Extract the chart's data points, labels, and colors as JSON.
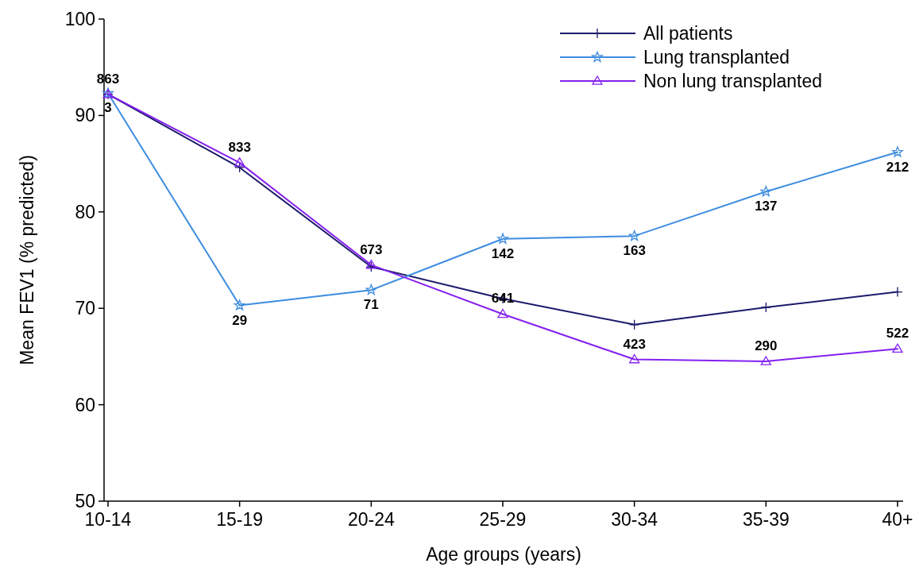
{
  "chart_data": {
    "type": "line",
    "xlabel": "Age groups (years)",
    "ylabel": "Mean FEV1 (% predicted)",
    "categories": [
      "10-14",
      "15-19",
      "20-24",
      "25-29",
      "30-34",
      "35-39",
      "40+"
    ],
    "ylim": [
      50,
      100
    ],
    "yticks": [
      50,
      60,
      70,
      80,
      90,
      100
    ],
    "legend": "top right",
    "grid": false,
    "series": [
      {
        "name": "All patients",
        "color": "#1c1a6b",
        "marker": "cross",
        "values": [
          92.2,
          84.6,
          74.3,
          71.0,
          68.3,
          70.1,
          71.7
        ]
      },
      {
        "name": "Lung transplanted",
        "color": "#3d8de0",
        "marker": "star",
        "values": [
          92.3,
          70.3,
          71.9,
          77.2,
          77.5,
          82.1,
          86.2
        ]
      },
      {
        "name": "Non lung transplanted",
        "color": "#8420f0",
        "marker": "triangle",
        "values": [
          92.2,
          85.1,
          74.5,
          69.4,
          64.7,
          64.5,
          65.8
        ]
      }
    ],
    "annotations": [
      {
        "text": "863",
        "x": "10-14",
        "y": 92.2
      },
      {
        "text": "3",
        "x": "10-14",
        "y": 92.3
      },
      {
        "text": "833",
        "x": "15-19",
        "y": 85.1
      },
      {
        "text": "29",
        "x": "15-19",
        "y": 70.3
      },
      {
        "text": "673",
        "x": "20-24",
        "y": 74.5
      },
      {
        "text": "71",
        "x": "20-24",
        "y": 71.9
      },
      {
        "text": "641",
        "x": "25-29",
        "y": 69.4
      },
      {
        "text": "142",
        "x": "25-29",
        "y": 77.2
      },
      {
        "text": "423",
        "x": "30-34",
        "y": 64.7
      },
      {
        "text": "163",
        "x": "30-34",
        "y": 77.5
      },
      {
        "text": "290",
        "x": "35-39",
        "y": 64.5
      },
      {
        "text": "137",
        "x": "35-39",
        "y": 82.1
      },
      {
        "text": "522",
        "x": "40+",
        "y": 65.8
      },
      {
        "text": "212",
        "x": "40+",
        "y": 86.2
      }
    ]
  }
}
